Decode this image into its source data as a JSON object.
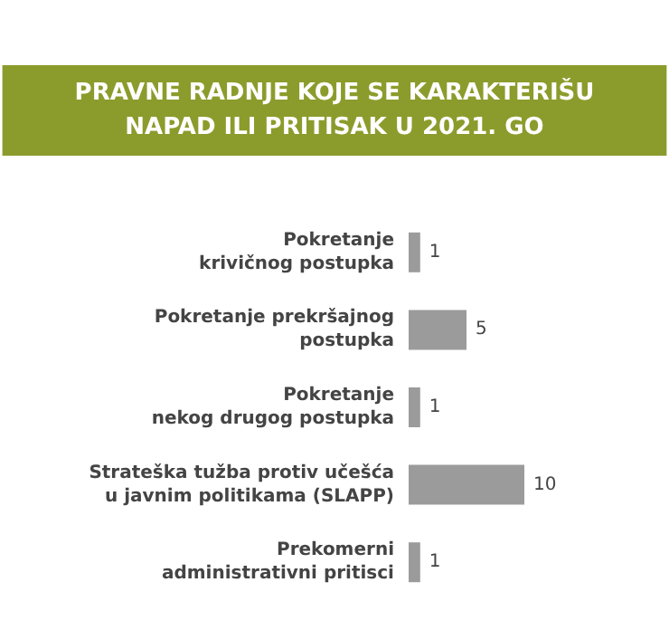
{
  "chart_data": {
    "type": "bar",
    "orientation": "horizontal",
    "title": "PRAVNE RADNJE KOJE SE KARAKTERIŠU\nNAPAD ILI PRITISAK U 2021. GO",
    "categories": [
      "Pokretanje\nkrivičnog postupka",
      "Pokretanje prekršajnog\npostupka",
      "Pokretanje\nnekog drugog postupka",
      "Strateška tužba protiv učešća\nu javnim politikama (SLAPP)",
      "Prekomerni\nadministrativni pritisci"
    ],
    "values": [
      1,
      5,
      1,
      10,
      1
    ],
    "color": "#9b9b9b",
    "data_labels": true
  }
}
